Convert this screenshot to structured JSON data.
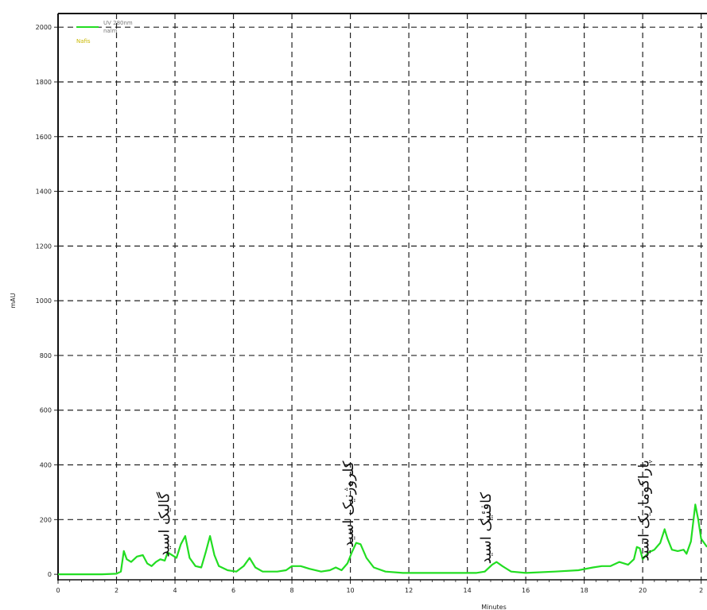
{
  "chart_data": {
    "type": "line",
    "title": "",
    "xlabel": "Minutes",
    "ylabel": "mAU",
    "xlim": [
      0,
      22.2
    ],
    "ylim": [
      -20,
      2050
    ],
    "grid": true,
    "grid_style": "dashed",
    "x_ticks": [
      "0",
      "2",
      "4",
      "6",
      "8",
      "10",
      "12",
      "14",
      "16",
      "18",
      "20",
      "2"
    ],
    "y_ticks": [
      "0",
      "200",
      "400",
      "600",
      "800",
      "1000",
      "1200",
      "1400",
      "1600",
      "1800",
      "2000"
    ],
    "legend": {
      "position": "top-left",
      "entries": [
        {
          "name": "UV 280nm",
          "sub": "nalm",
          "color": "#22dd22"
        }
      ],
      "tag": "Nafis"
    },
    "series": [
      {
        "name": "UV 280nm",
        "color": "#22dd22",
        "points": [
          [
            0,
            0
          ],
          [
            1.5,
            0
          ],
          [
            2.0,
            2
          ],
          [
            2.15,
            10
          ],
          [
            2.25,
            85
          ],
          [
            2.35,
            55
          ],
          [
            2.5,
            45
          ],
          [
            2.7,
            65
          ],
          [
            2.9,
            70
          ],
          [
            3.05,
            40
          ],
          [
            3.2,
            30
          ],
          [
            3.35,
            45
          ],
          [
            3.5,
            55
          ],
          [
            3.65,
            50
          ],
          [
            3.75,
            80
          ],
          [
            3.9,
            70
          ],
          [
            4.05,
            60
          ],
          [
            4.2,
            110
          ],
          [
            4.35,
            140
          ],
          [
            4.5,
            60
          ],
          [
            4.7,
            30
          ],
          [
            4.9,
            25
          ],
          [
            5.05,
            80
          ],
          [
            5.2,
            140
          ],
          [
            5.35,
            70
          ],
          [
            5.5,
            30
          ],
          [
            5.8,
            15
          ],
          [
            6.1,
            10
          ],
          [
            6.35,
            30
          ],
          [
            6.55,
            60
          ],
          [
            6.75,
            25
          ],
          [
            7.0,
            10
          ],
          [
            7.5,
            10
          ],
          [
            7.8,
            15
          ],
          [
            8.0,
            30
          ],
          [
            8.3,
            30
          ],
          [
            8.6,
            20
          ],
          [
            9.0,
            10
          ],
          [
            9.3,
            15
          ],
          [
            9.5,
            25
          ],
          [
            9.7,
            15
          ],
          [
            9.9,
            40
          ],
          [
            10.05,
            80
          ],
          [
            10.2,
            115
          ],
          [
            10.35,
            110
          ],
          [
            10.55,
            60
          ],
          [
            10.8,
            25
          ],
          [
            11.2,
            10
          ],
          [
            11.8,
            5
          ],
          [
            12.5,
            5
          ],
          [
            13.5,
            5
          ],
          [
            14.3,
            5
          ],
          [
            14.6,
            10
          ],
          [
            14.85,
            35
          ],
          [
            15.0,
            45
          ],
          [
            15.2,
            30
          ],
          [
            15.5,
            10
          ],
          [
            16.0,
            5
          ],
          [
            17.0,
            10
          ],
          [
            17.8,
            15
          ],
          [
            18.3,
            25
          ],
          [
            18.6,
            30
          ],
          [
            18.9,
            30
          ],
          [
            19.2,
            45
          ],
          [
            19.5,
            35
          ],
          [
            19.7,
            55
          ],
          [
            19.8,
            100
          ],
          [
            19.9,
            95
          ],
          [
            20.0,
            55
          ],
          [
            20.2,
            80
          ],
          [
            20.4,
            90
          ],
          [
            20.6,
            115
          ],
          [
            20.75,
            165
          ],
          [
            20.85,
            130
          ],
          [
            21.0,
            90
          ],
          [
            21.2,
            85
          ],
          [
            21.4,
            90
          ],
          [
            21.5,
            75
          ],
          [
            21.65,
            120
          ],
          [
            21.8,
            255
          ],
          [
            21.9,
            200
          ],
          [
            22.0,
            130
          ],
          [
            22.2,
            100
          ]
        ]
      }
    ],
    "annotations": [
      {
        "text": "گالیک اسید",
        "x": 3.8,
        "y": 45
      },
      {
        "text": "کلروژنیک اسید",
        "x": 10.1,
        "y": 80
      },
      {
        "text": "کافئیک اسید",
        "x": 14.8,
        "y": 20
      },
      {
        "text": "پاراکوماریک اسید",
        "x": 20.2,
        "y": 30
      }
    ]
  }
}
